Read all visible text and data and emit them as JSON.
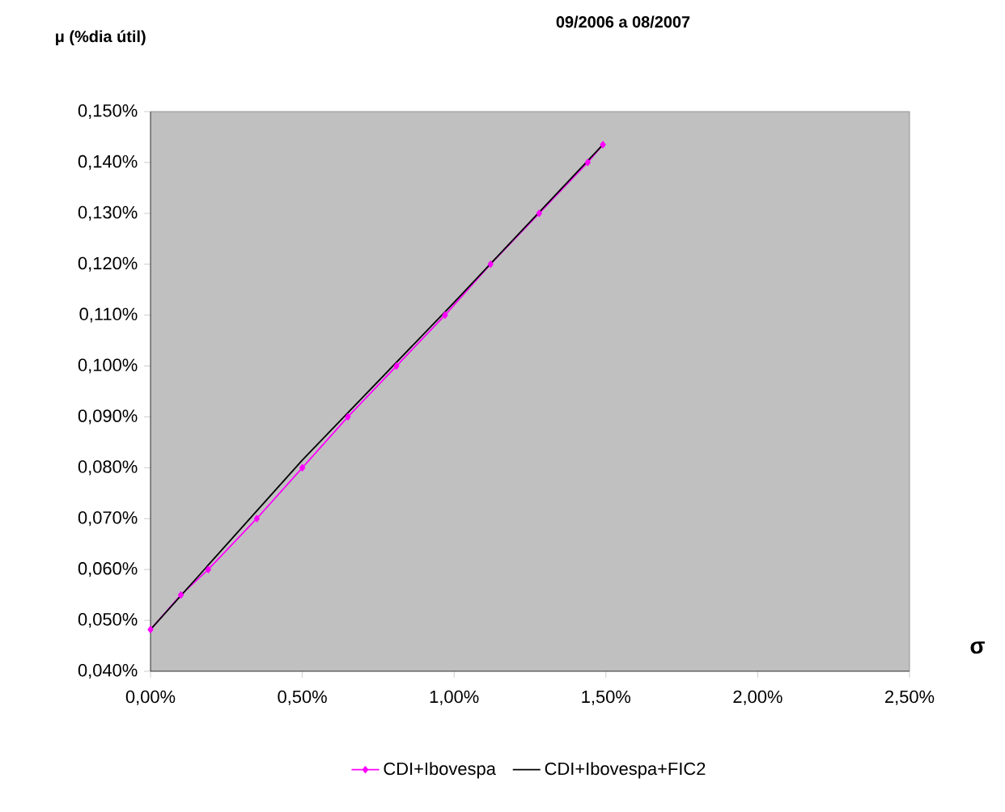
{
  "chart_data": {
    "type": "line",
    "title": "09/2006 a 08/2007",
    "ylabel": "μ (%dia útil)",
    "xlabel": "σ",
    "xlim": [
      0,
      2.5
    ],
    "ylim": [
      0.04,
      0.15
    ],
    "xticks": [
      {
        "value": 0,
        "label": "0,00%"
      },
      {
        "value": 0.5,
        "label": "0,50%"
      },
      {
        "value": 1,
        "label": "1,00%"
      },
      {
        "value": 1.5,
        "label": "1,50%"
      },
      {
        "value": 2,
        "label": "2,00%"
      },
      {
        "value": 2.5,
        "label": "2,50%"
      }
    ],
    "yticks": [
      {
        "value": 0.04,
        "label": "0,040%"
      },
      {
        "value": 0.05,
        "label": "0,050%"
      },
      {
        "value": 0.06,
        "label": "0,060%"
      },
      {
        "value": 0.07,
        "label": "0,070%"
      },
      {
        "value": 0.08,
        "label": "0,080%"
      },
      {
        "value": 0.09,
        "label": "0,090%"
      },
      {
        "value": 0.1,
        "label": "0,100%"
      },
      {
        "value": 0.11,
        "label": "0,110%"
      },
      {
        "value": 0.12,
        "label": "0,120%"
      },
      {
        "value": 0.13,
        "label": "0,130%"
      },
      {
        "value": 0.14,
        "label": "0,140%"
      },
      {
        "value": 0.15,
        "label": "0,150%"
      }
    ],
    "grid": false,
    "legend": "bottom",
    "series": [
      {
        "name": "CDI+Ibovespa",
        "color": "#ff00ff",
        "marker": "diamond",
        "x": [
          0,
          0.1,
          0.19,
          0.35,
          0.5,
          0.65,
          0.81,
          0.97,
          1.12,
          1.28,
          1.44,
          1.49
        ],
        "values": [
          0.0482,
          0.055,
          0.06,
          0.07,
          0.08,
          0.09,
          0.1,
          0.11,
          0.12,
          0.13,
          0.14,
          0.1435
        ]
      },
      {
        "name": "CDI+Ibovespa+FIC2",
        "color": "#000000",
        "marker": "none",
        "x": [
          0,
          0.5,
          1.0,
          1.49
        ],
        "values": [
          0.0482,
          0.0815,
          0.1125,
          0.1435
        ]
      }
    ]
  }
}
